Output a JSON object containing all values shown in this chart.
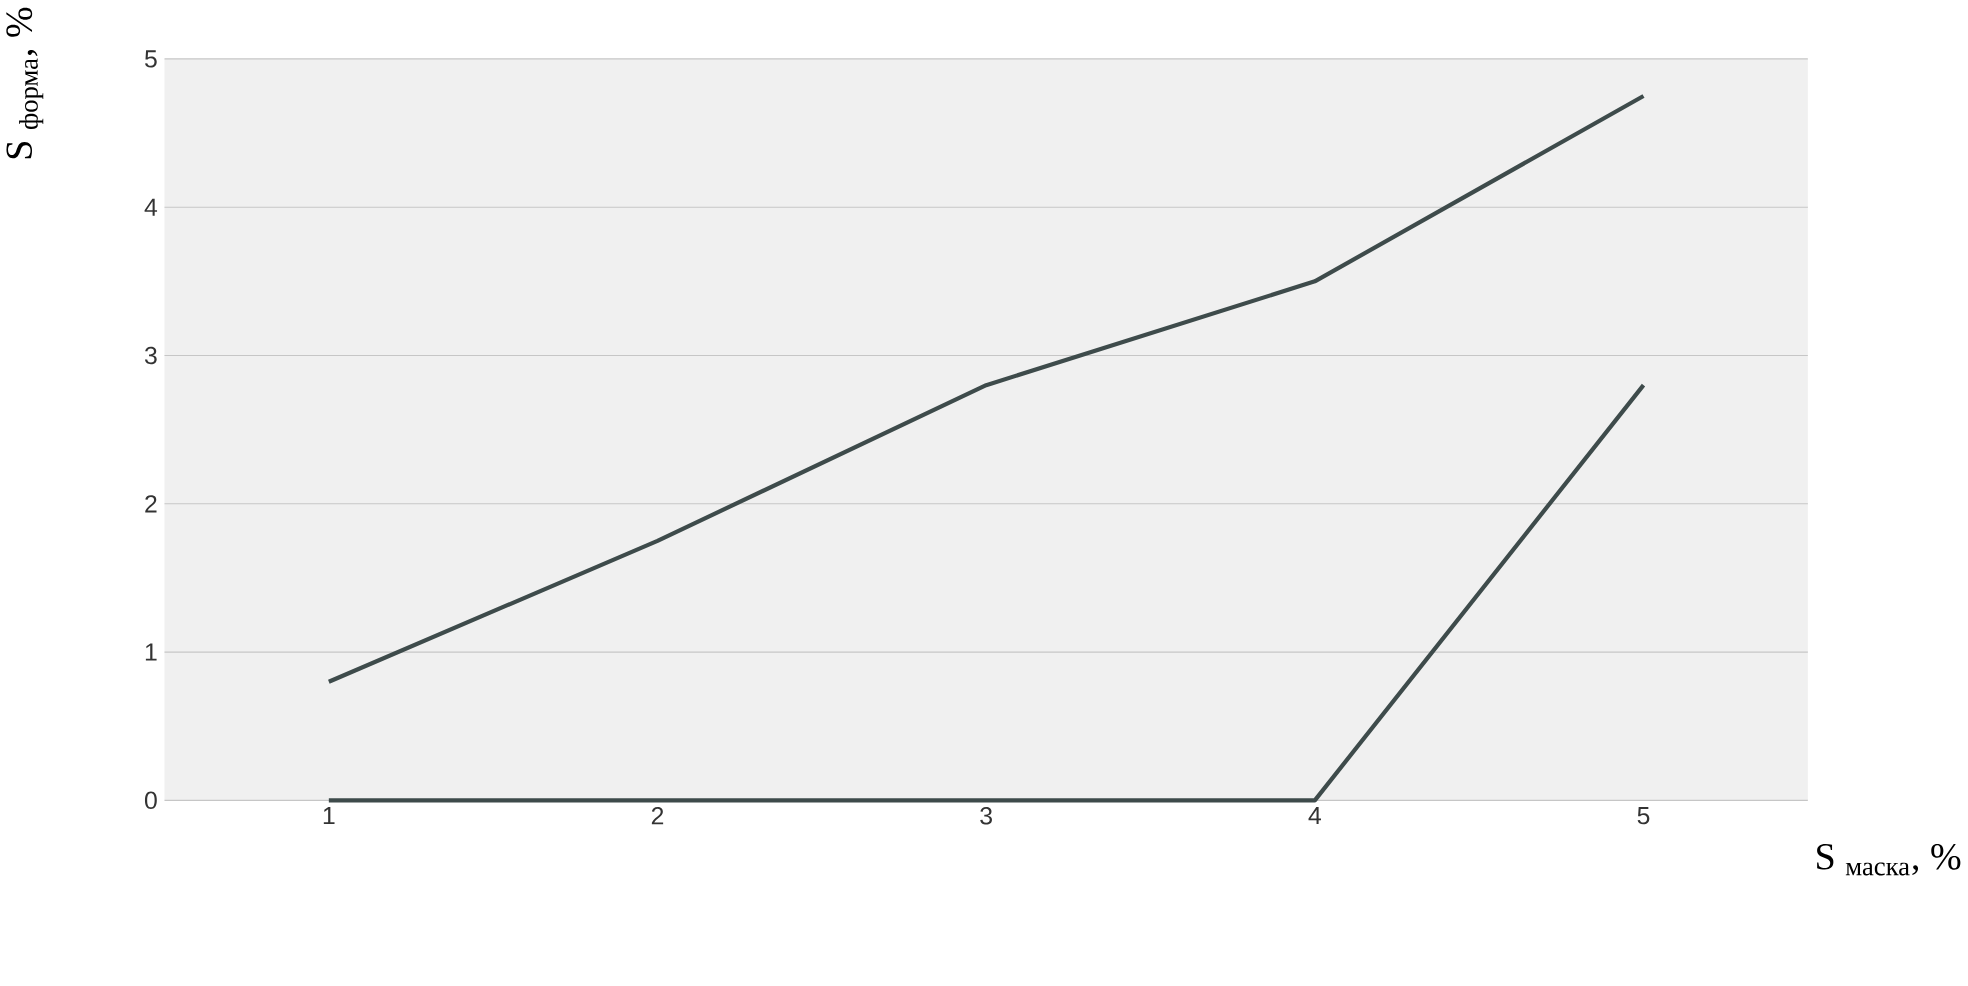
{
  "chart_data": {
    "type": "line",
    "xlabel": "S $_{маска}$, %",
    "ylabel": "S $_{форма}$, %",
    "categories": [
      "1",
      "2",
      "3",
      "4",
      "5"
    ],
    "series": [
      {
        "color": "#3e4b4b",
        "values": [
          0.8,
          1.75,
          2.8,
          3.5,
          4.75
        ]
      },
      {
        "color": "#3e4b4b",
        "values": [
          0,
          0,
          0,
          0,
          2.8
        ]
      }
    ],
    "ylim": [
      0,
      5
    ],
    "yticks": [
      0,
      1,
      2,
      3,
      4,
      5
    ],
    "grid": "y",
    "marker": "none",
    "line_style": "solid"
  }
}
